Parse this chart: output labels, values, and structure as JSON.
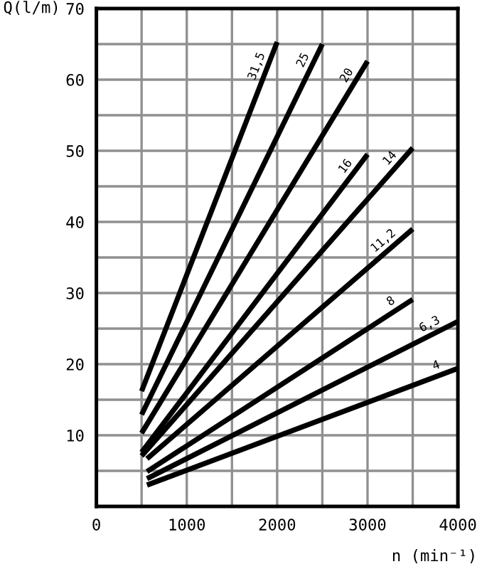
{
  "chart_data": {
    "type": "line",
    "ylabel": "Q(l/m)",
    "xlabel": "n (min⁻¹)",
    "xlim": [
      0,
      4000
    ],
    "ylim": [
      0,
      70
    ],
    "xticks": [
      0,
      1000,
      2000,
      3000,
      4000
    ],
    "yticks": [
      10,
      20,
      30,
      40,
      50,
      60,
      70
    ],
    "grid": true,
    "legend": false,
    "marker": "none",
    "line_style": "solid",
    "series": [
      {
        "name": "31,5",
        "color": "#000000",
        "x": [
          500,
          2000
        ],
        "values": [
          16.2,
          65.3
        ]
      },
      {
        "name": "25",
        "color": "#000000",
        "x": [
          500,
          2500
        ],
        "values": [
          12.9,
          65
        ]
      },
      {
        "name": "20",
        "color": "#000000",
        "x": [
          500,
          3000
        ],
        "values": [
          10.3,
          62.6
        ]
      },
      {
        "name": "16",
        "color": "#000000",
        "x": [
          500,
          3000
        ],
        "values": [
          7.6,
          49.5
        ]
      },
      {
        "name": "14",
        "color": "#000000",
        "x": [
          500,
          3500
        ],
        "values": [
          7.1,
          50.4
        ]
      },
      {
        "name": "11,2",
        "color": "#000000",
        "x": [
          560,
          3500
        ],
        "values": [
          6.7,
          39
        ]
      },
      {
        "name": "8",
        "color": "#000000",
        "x": [
          560,
          3500
        ],
        "values": [
          4.9,
          29.1
        ]
      },
      {
        "name": "6,3",
        "color": "#000000",
        "x": [
          560,
          4000
        ],
        "values": [
          3.9,
          26
        ]
      },
      {
        "name": "4",
        "color": "#000000",
        "x": [
          560,
          4000
        ],
        "values": [
          3,
          19.4
        ]
      }
    ]
  }
}
